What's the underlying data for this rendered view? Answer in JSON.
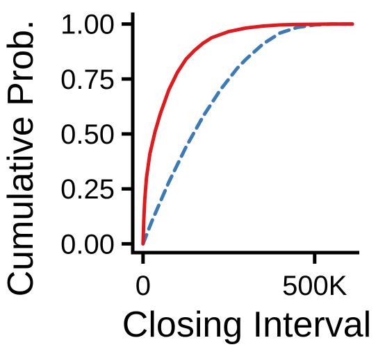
{
  "chart_data": {
    "type": "line",
    "title": "",
    "xlabel": "Closing Interval",
    "ylabel": "Cumulative Prob.",
    "xlim": [
      -30000,
      630000
    ],
    "ylim": [
      -0.04,
      1.04
    ],
    "x_ticks": [
      {
        "value": 0,
        "label": "0"
      },
      {
        "value": 500000,
        "label": "500K"
      }
    ],
    "y_ticks": [
      {
        "value": 0,
        "label": "0.00"
      },
      {
        "value": 0.25,
        "label": "0.25"
      },
      {
        "value": 0.5,
        "label": "0.50"
      },
      {
        "value": 0.75,
        "label": "0.75"
      },
      {
        "value": 1,
        "label": "1.00"
      }
    ],
    "grid": false,
    "legend": "none",
    "series": [
      {
        "color": "#e31a1c",
        "line_style": "solid",
        "x": [
          0,
          2000,
          5000,
          10000,
          20000,
          35000,
          50000,
          75000,
          100000,
          125000,
          150000,
          175000,
          200000,
          250000,
          300000,
          350000,
          400000,
          450000,
          500000,
          550000,
          610000
        ],
        "y": [
          0.0,
          0.1,
          0.2,
          0.3,
          0.41,
          0.51,
          0.59,
          0.7,
          0.78,
          0.84,
          0.88,
          0.913,
          0.938,
          0.966,
          0.982,
          0.991,
          0.996,
          0.998,
          0.999,
          1.0,
          1.0
        ]
      },
      {
        "color": "#3a7ab8",
        "line_style": "dashed",
        "x": [
          0,
          10000,
          25000,
          50000,
          75000,
          100000,
          125000,
          150000,
          175000,
          200000,
          225000,
          250000,
          275000,
          300000,
          350000,
          400000,
          450000,
          500000,
          550000,
          610000
        ],
        "y": [
          0.0,
          0.04,
          0.1,
          0.19,
          0.28,
          0.36,
          0.44,
          0.51,
          0.58,
          0.64,
          0.7,
          0.75,
          0.8,
          0.84,
          0.91,
          0.96,
          0.985,
          0.996,
          1.0,
          1.0
        ]
      }
    ]
  }
}
